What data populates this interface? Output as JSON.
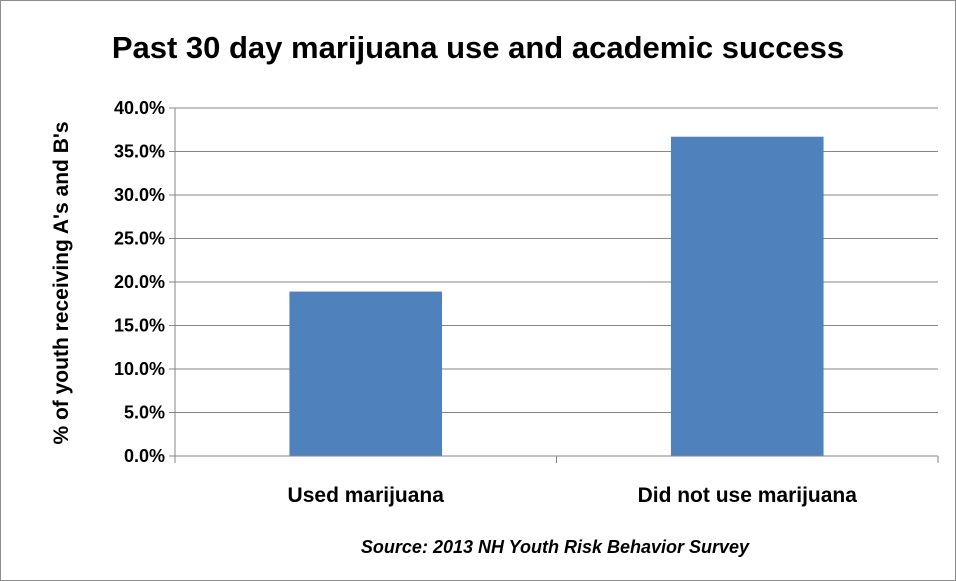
{
  "chart_data": {
    "type": "bar",
    "title": "Past 30 day marijuana use and academic success",
    "xlabel": "",
    "ylabel": "% of youth receiving A's and B's",
    "categories": [
      "Used marijuana",
      "Did not use marijuana"
    ],
    "values": [
      0.189,
      0.367
    ],
    "ylim": [
      0,
      0.4
    ],
    "y_ticks": [
      "0.0%",
      "5.0%",
      "10.0%",
      "15.0%",
      "20.0%",
      "25.0%",
      "30.0%",
      "35.0%",
      "40.0%"
    ],
    "grid": true,
    "legend": "none",
    "bar_color": "#4f81bd",
    "grid_color": "#868686"
  },
  "source": "Source: 2013 NH Youth Risk Behavior Survey"
}
